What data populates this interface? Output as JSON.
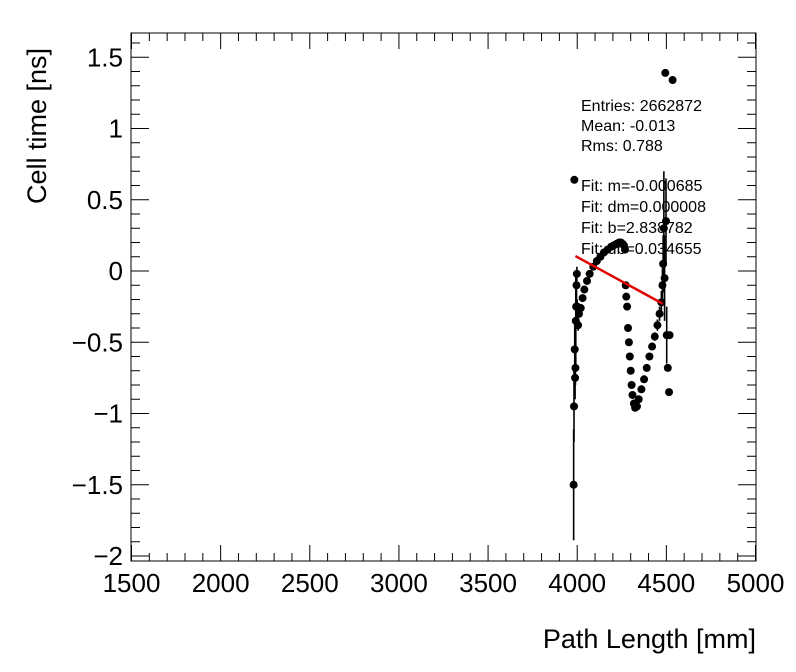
{
  "chart_data": {
    "type": "scatter",
    "title": "",
    "xlabel": "Path Length [mm]",
    "ylabel": "Cell time [ns]",
    "xlim": [
      1500,
      5000
    ],
    "ylim": [
      -2.1,
      1.7
    ],
    "x_ticks": [
      1500,
      2000,
      2500,
      3000,
      3500,
      4000,
      4500,
      5000
    ],
    "x_tick_labels": [
      "1500",
      "2000",
      "2500",
      "3000",
      "3500",
      "4000",
      "4500",
      "5000"
    ],
    "y_ticks": [
      1.5,
      1,
      0.5,
      0,
      -0.5,
      -1,
      -1.5,
      -2
    ],
    "y_tick_labels": [
      "1.5",
      "1",
      "0.5",
      "0",
      "−0.5",
      "−1",
      "−1.5",
      "−2"
    ],
    "grid": false,
    "stats": {
      "entries": "Entries: 2662872",
      "mean": "Mean: -0.013",
      "rms": "Rms: 0.788",
      "fit_m": "Fit: m=-0.000685",
      "fit_dm": "Fit: dm=0.000008",
      "fit_b": "Fit: b=2.838782",
      "fit_db": "Fit: db=0.034655"
    },
    "fit_line": {
      "color": "#e00000",
      "x": [
        3990,
        4480
      ],
      "y": [
        0.105,
        -0.23
      ]
    },
    "series": [
      {
        "points": [
          {
            "x": 3980,
            "y": -1.5,
            "e": 0.39
          },
          {
            "x": 3982,
            "y": -0.95,
            "e": 0.25
          },
          {
            "x": 3984,
            "y": 0.64,
            "e": 0
          },
          {
            "x": 3986,
            "y": -0.55,
            "e": 0.2
          },
          {
            "x": 3988,
            "y": -0.75,
            "e": 0.15
          },
          {
            "x": 3990,
            "y": -0.68,
            "e": 0.12
          },
          {
            "x": 3992,
            "y": -0.35,
            "e": 0.35
          },
          {
            "x": 3994,
            "y": -0.25,
            "e": 0.15
          },
          {
            "x": 3996,
            "y": -0.1,
            "e": 0.1
          },
          {
            "x": 3998,
            "y": -0.02,
            "e": 0.05
          },
          {
            "x": 4000,
            "y": -0.25,
            "e": 0.05
          },
          {
            "x": 4005,
            "y": -0.38,
            "e": 0.04
          },
          {
            "x": 4010,
            "y": -0.3,
            "e": 0.03
          },
          {
            "x": 4020,
            "y": -0.26,
            "e": 0
          },
          {
            "x": 4030,
            "y": -0.19,
            "e": 0
          },
          {
            "x": 4040,
            "y": -0.13,
            "e": 0
          },
          {
            "x": 4055,
            "y": -0.07,
            "e": 0
          },
          {
            "x": 4070,
            "y": -0.02,
            "e": 0
          },
          {
            "x": 4090,
            "y": 0.03,
            "e": 0
          },
          {
            "x": 4110,
            "y": 0.07,
            "e": 0
          },
          {
            "x": 4130,
            "y": 0.1,
            "e": 0
          },
          {
            "x": 4150,
            "y": 0.13,
            "e": 0
          },
          {
            "x": 4170,
            "y": 0.15,
            "e": 0
          },
          {
            "x": 4190,
            "y": 0.17,
            "e": 0
          },
          {
            "x": 4205,
            "y": 0.18,
            "e": 0
          },
          {
            "x": 4220,
            "y": 0.19,
            "e": 0
          },
          {
            "x": 4235,
            "y": 0.2,
            "e": 0
          },
          {
            "x": 4245,
            "y": 0.2,
            "e": 0
          },
          {
            "x": 4255,
            "y": 0.19,
            "e": 0
          },
          {
            "x": 4262,
            "y": 0.18,
            "e": 0
          },
          {
            "x": 4268,
            "y": 0.15,
            "e": 0
          },
          {
            "x": 4272,
            "y": -0.1,
            "e": 0.02
          },
          {
            "x": 4275,
            "y": -0.18,
            "e": 0.02
          },
          {
            "x": 4280,
            "y": -0.25,
            "e": 0.02
          },
          {
            "x": 4285,
            "y": -0.4,
            "e": 0.02
          },
          {
            "x": 4290,
            "y": -0.5,
            "e": 0.02
          },
          {
            "x": 4295,
            "y": -0.6,
            "e": 0.02
          },
          {
            "x": 4300,
            "y": -0.7,
            "e": 0.02
          },
          {
            "x": 4305,
            "y": -0.8,
            "e": 0.02
          },
          {
            "x": 4310,
            "y": -0.87,
            "e": 0.02
          },
          {
            "x": 4318,
            "y": -0.93,
            "e": 0.02
          },
          {
            "x": 4325,
            "y": -0.96,
            "e": 0.02
          },
          {
            "x": 4335,
            "y": -0.95,
            "e": 0.02
          },
          {
            "x": 4345,
            "y": -0.9,
            "e": 0.02
          },
          {
            "x": 4360,
            "y": -0.83,
            "e": 0.02
          },
          {
            "x": 4375,
            "y": -0.76,
            "e": 0.02
          },
          {
            "x": 4390,
            "y": -0.68,
            "e": 0.02
          },
          {
            "x": 4405,
            "y": -0.6,
            "e": 0.02
          },
          {
            "x": 4420,
            "y": -0.53,
            "e": 0.02
          },
          {
            "x": 4435,
            "y": -0.46,
            "e": 0.03
          },
          {
            "x": 4450,
            "y": -0.38,
            "e": 0.04
          },
          {
            "x": 4462,
            "y": -0.3,
            "e": 0.05
          },
          {
            "x": 4472,
            "y": -0.22,
            "e": 0.08
          },
          {
            "x": 4478,
            "y": -0.1,
            "e": 0.12
          },
          {
            "x": 4482,
            "y": 0.05,
            "e": 0.2
          },
          {
            "x": 4486,
            "y": 0.3,
            "e": 0.4
          },
          {
            "x": 4490,
            "y": -0.05,
            "e": 0.3
          },
          {
            "x": 4494,
            "y": 1.39,
            "e": 0
          },
          {
            "x": 4498,
            "y": 0.35,
            "e": 0.3
          },
          {
            "x": 4502,
            "y": -0.45,
            "e": 0.2
          },
          {
            "x": 4508,
            "y": -0.68,
            "e": 0
          },
          {
            "x": 4515,
            "y": -0.85,
            "e": 0
          },
          {
            "x": 4518,
            "y": -0.45,
            "e": 0
          },
          {
            "x": 4535,
            "y": 1.34,
            "e": 0
          }
        ]
      }
    ]
  }
}
